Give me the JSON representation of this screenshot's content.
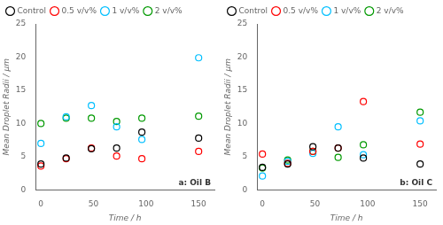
{
  "chart_data": [
    {
      "type": "scatter",
      "annotation": "a: Oil B",
      "xlabel": "Time / h",
      "ylabel": "Mean Droplet Radii / μm",
      "xlim": [
        -5,
        165
      ],
      "ylim": [
        0,
        25
      ],
      "xticks": [
        0,
        50,
        100,
        150
      ],
      "yticks": [
        0,
        5,
        10,
        15,
        20,
        25
      ],
      "grid": false,
      "legend": "upper left",
      "marker": "circle",
      "series": [
        {
          "name": "Control",
          "color": "#000000",
          "x": [
            0,
            24,
            48,
            72,
            96,
            150
          ],
          "values": [
            3.9,
            4.8,
            6.2,
            6.3,
            8.7,
            7.8
          ]
        },
        {
          "name": "0.5 v/v%",
          "color": "#ff0000",
          "x": [
            0,
            24,
            48,
            72,
            96,
            150
          ],
          "values": [
            3.6,
            4.7,
            6.3,
            5.1,
            4.7,
            5.8
          ]
        },
        {
          "name": "1 v/v%",
          "color": "#00bfff",
          "x": [
            0,
            24,
            48,
            72,
            96,
            150
          ],
          "values": [
            7.0,
            11.0,
            12.7,
            9.5,
            7.6,
            19.9
          ]
        },
        {
          "name": "2 v/v%",
          "color": "#009900",
          "x": [
            0,
            24,
            48,
            72,
            96,
            150
          ],
          "values": [
            10.0,
            10.8,
            10.8,
            10.3,
            10.8,
            11.1
          ]
        }
      ]
    },
    {
      "type": "scatter",
      "annotation": "b: Oil C",
      "xlabel": "Time / h",
      "ylabel": "Mean Droplet Radii / μm",
      "xlim": [
        -5,
        165
      ],
      "ylim": [
        0,
        25
      ],
      "xticks": [
        0,
        50,
        100,
        150
      ],
      "yticks": [
        0,
        5,
        10,
        15,
        20,
        25
      ],
      "grid": false,
      "legend": "upper left",
      "marker": "circle",
      "series": [
        {
          "name": "Control",
          "color": "#000000",
          "x": [
            0,
            24,
            48,
            72,
            96,
            150
          ],
          "values": [
            3.4,
            3.9,
            6.5,
            6.3,
            4.8,
            3.9
          ]
        },
        {
          "name": "0.5 v/v%",
          "color": "#ff0000",
          "x": [
            0,
            24,
            48,
            72,
            96,
            150
          ],
          "values": [
            5.4,
            4.0,
            5.8,
            6.3,
            13.3,
            6.9
          ]
        },
        {
          "name": "1 v/v%",
          "color": "#00bfff",
          "x": [
            0,
            24,
            48,
            72,
            96,
            150
          ],
          "values": [
            2.1,
            4.3,
            5.5,
            9.5,
            5.3,
            10.4
          ]
        },
        {
          "name": "2 v/v%",
          "color": "#009900",
          "x": [
            0,
            24,
            48,
            72,
            96,
            150
          ],
          "values": [
            3.3,
            4.5,
            5.8,
            4.9,
            6.8,
            11.7
          ]
        }
      ]
    }
  ]
}
